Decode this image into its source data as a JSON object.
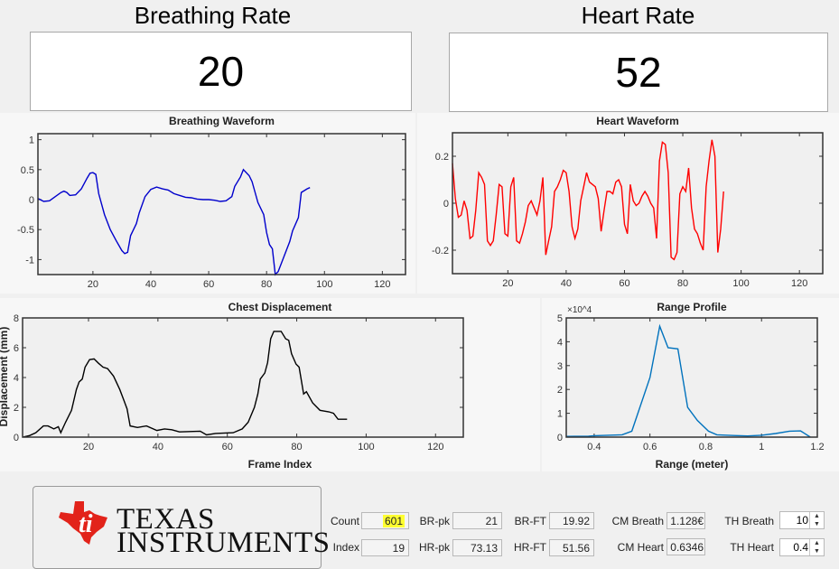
{
  "breathing_rate": {
    "title": "Breathing Rate",
    "value": "20"
  },
  "heart_rate": {
    "title": "Heart Rate",
    "value": "52"
  },
  "logo": {
    "line1": "TEXAS",
    "line2": "INSTRUMENTS",
    "brand_color": "#e2231a"
  },
  "controls": {
    "count": {
      "label": "Count",
      "value": "601"
    },
    "index": {
      "label": "Index",
      "value": "19"
    },
    "br_pk": {
      "label": "BR-pk",
      "value": "21"
    },
    "hr_pk": {
      "label": "HR-pk",
      "value": "73.13"
    },
    "br_ft": {
      "label": "BR-FT",
      "value": "19.92"
    },
    "hr_ft": {
      "label": "HR-FT",
      "value": "51.56"
    },
    "cm_breath": {
      "label": "CM Breath",
      "value": "1.128€"
    },
    "cm_heart": {
      "label": "CM  Heart",
      "value": "0.6346"
    },
    "th_breath": {
      "label": "TH Breath",
      "value": "10"
    },
    "th_heart": {
      "label": "TH  Heart",
      "value": "0.4"
    }
  },
  "chart_data": [
    {
      "id": "breathing",
      "type": "line",
      "title": "Breathing Waveform",
      "xlabel": "",
      "ylabel": "",
      "color": "#0000cc",
      "xlim": [
        1,
        128
      ],
      "ylim": [
        -1.25,
        1.1
      ],
      "xticks": [
        20,
        40,
        60,
        80,
        100,
        120
      ],
      "yticks": [
        -1,
        -0.5,
        0,
        0.5,
        1
      ],
      "yticklabels": [
        "-1",
        "-0.5",
        "0",
        "0.5",
        "1"
      ],
      "x": [
        1,
        3,
        5,
        7,
        9,
        10,
        11,
        12,
        14,
        16,
        18,
        19,
        20,
        21,
        22,
        24,
        26,
        28,
        30,
        31,
        32,
        33,
        35,
        36,
        38,
        40,
        42,
        44,
        46,
        48,
        50,
        52,
        54,
        56,
        58,
        60,
        62,
        64,
        66,
        68,
        69,
        71,
        72,
        74,
        75,
        77,
        79,
        80,
        81,
        82,
        83,
        84,
        86,
        88,
        89,
        91,
        92,
        94,
        95
      ],
      "y": [
        0.02,
        -0.03,
        -0.02,
        0.05,
        0.12,
        0.14,
        0.12,
        0.07,
        0.08,
        0.18,
        0.36,
        0.44,
        0.45,
        0.42,
        0.1,
        -0.25,
        -0.5,
        -0.68,
        -0.85,
        -0.9,
        -0.88,
        -0.6,
        -0.4,
        -0.22,
        0.05,
        0.17,
        0.21,
        0.18,
        0.16,
        0.1,
        0.07,
        0.04,
        0.03,
        0.01,
        0,
        0,
        -0.01,
        -0.03,
        -0.02,
        0.05,
        0.22,
        0.38,
        0.5,
        0.4,
        0.3,
        -0.05,
        -0.25,
        -0.55,
        -0.75,
        -0.82,
        -1.25,
        -1.2,
        -0.95,
        -0.7,
        -0.52,
        -0.3,
        0.12,
        0.18,
        0.2
      ]
    },
    {
      "id": "heart",
      "type": "line",
      "title": "Heart Waveform",
      "xlabel": "",
      "ylabel": "",
      "color": "#ff0000",
      "xlim": [
        1,
        128
      ],
      "ylim": [
        -0.3,
        0.3
      ],
      "xticks": [
        20,
        40,
        60,
        80,
        100,
        120
      ],
      "yticks": [
        -0.2,
        0,
        0.2
      ],
      "yticklabels": [
        "-0.2",
        "0",
        "0.2"
      ],
      "x": [
        1,
        2,
        3,
        4,
        5,
        6,
        7,
        8,
        9,
        10,
        11,
        12,
        13,
        14,
        15,
        16,
        17,
        18,
        19,
        20,
        21,
        22,
        23,
        24,
        25,
        26,
        27,
        28,
        29,
        30,
        31,
        32,
        33,
        34,
        35,
        36,
        37,
        38,
        39,
        40,
        41,
        42,
        43,
        44,
        45,
        46,
        47,
        48,
        49,
        50,
        51,
        52,
        53,
        54,
        55,
        56,
        57,
        58,
        59,
        60,
        61,
        62,
        63,
        64,
        65,
        66,
        67,
        68,
        69,
        70,
        71,
        72,
        73,
        74,
        75,
        76,
        77,
        78,
        79,
        80,
        81,
        82,
        83,
        84,
        85,
        86,
        87,
        88,
        89,
        90,
        91,
        92,
        93,
        94
      ],
      "y": [
        0.17,
        0.02,
        -0.06,
        -0.05,
        0.01,
        -0.03,
        -0.15,
        -0.14,
        -0.03,
        0.13,
        0.11,
        0.08,
        -0.16,
        -0.18,
        -0.16,
        -0.05,
        0.08,
        0.07,
        -0.13,
        -0.14,
        0.07,
        0.11,
        -0.16,
        -0.17,
        -0.13,
        -0.08,
        -0.01,
        0.01,
        -0.02,
        -0.05,
        0.01,
        0.11,
        -0.22,
        -0.16,
        -0.1,
        0.05,
        0.07,
        0.1,
        0.14,
        0.13,
        0.05,
        -0.1,
        -0.15,
        -0.11,
        0.01,
        0.07,
        0.13,
        0.09,
        0.08,
        0.07,
        0.02,
        -0.12,
        -0.03,
        0.05,
        0.05,
        0.04,
        0.09,
        0.1,
        0.07,
        -0.09,
        -0.13,
        0.08,
        0.01,
        -0.01,
        0,
        0.03,
        0.05,
        0.03,
        0,
        -0.02,
        -0.15,
        0.18,
        0.26,
        0.25,
        0.13,
        -0.23,
        -0.24,
        -0.21,
        0.04,
        0.07,
        0.05,
        0.15,
        -0.02,
        -0.11,
        -0.13,
        -0.17,
        -0.2,
        0.07,
        0.18,
        0.27,
        0.2,
        -0.21,
        -0.11,
        0.05
      ]
    },
    {
      "id": "chest",
      "type": "line",
      "title": "Chest Displacement",
      "xlabel": "Frame Index",
      "ylabel": "Displacement (mm)",
      "color": "#000000",
      "xlim": [
        1,
        128
      ],
      "ylim": [
        0,
        8
      ],
      "xticks": [
        20,
        40,
        60,
        80,
        100,
        120
      ],
      "yticks": [
        0,
        2,
        4,
        6,
        8
      ],
      "yticklabels": [
        "0",
        "2",
        "4",
        "6",
        "8"
      ],
      "x": [
        1,
        3,
        4.8,
        7,
        8.3,
        10,
        11.3,
        12,
        13.4,
        15.1,
        16.5,
        17.3,
        18.2,
        19,
        20.3,
        21.6,
        22.9,
        24.2,
        25.5,
        27.2,
        29,
        30.3,
        31.1,
        32,
        34.1,
        36.7,
        39.7,
        41.9,
        44,
        46.2,
        52.2,
        54,
        56.6,
        61.7,
        64.3,
        66,
        67.8,
        68.8,
        69.5,
        70.8,
        71.6,
        72.5,
        73.4,
        75.5,
        76.8,
        77.7,
        78.5,
        79.8,
        80.7,
        82,
        82.8,
        84.6,
        86.7,
        89.3,
        90.6,
        91.9,
        94.5
      ],
      "y": [
        0,
        0.1,
        0.3,
        0.75,
        0.75,
        0.55,
        0.7,
        0.3,
        1.0,
        1.8,
        3.2,
        3.7,
        3.9,
        4.7,
        5.2,
        5.25,
        4.95,
        4.7,
        4.6,
        4.1,
        3.2,
        2.4,
        1.9,
        0.75,
        0.65,
        0.75,
        0.45,
        0.55,
        0.5,
        0.35,
        0.4,
        0.15,
        0.25,
        0.3,
        0.55,
        1.0,
        2.0,
        2.9,
        3.9,
        4.3,
        5.0,
        6.6,
        7.1,
        7.1,
        6.6,
        6.5,
        5.6,
        4.9,
        4.7,
        2.9,
        3.05,
        2.3,
        1.8,
        1.7,
        1.6,
        1.2,
        1.2
      ]
    },
    {
      "id": "range",
      "type": "line",
      "title": "Range Profile",
      "xlabel": "Range (meter)",
      "ylabel": "",
      "color": "#0072bd",
      "xlim": [
        0.3,
        1.2
      ],
      "ylim": [
        0,
        50000
      ],
      "y_exponent_label": "×10^4",
      "xticks": [
        0.4,
        0.6,
        0.8,
        1,
        1.2
      ],
      "xticklabels": [
        "0.4",
        "0.6",
        "0.8",
        "1",
        "1.2"
      ],
      "yticks": [
        0,
        10000,
        20000,
        30000,
        40000,
        50000
      ],
      "yticklabels": [
        "0",
        "1",
        "2",
        "3",
        "4",
        "5"
      ],
      "x": [
        0.3,
        0.38,
        0.4,
        0.5,
        0.535,
        0.6,
        0.635,
        0.665,
        0.7,
        0.735,
        0.77,
        0.81,
        0.84,
        0.9,
        0.95,
        1.0,
        1.05,
        1.1,
        1.14,
        1.175
      ],
      "y": [
        300,
        400,
        600,
        1000,
        2500,
        25000,
        46500,
        37500,
        37000,
        12500,
        7000,
        2500,
        1000,
        700,
        500,
        800,
        1500,
        2500,
        2600,
        0
      ]
    }
  ]
}
